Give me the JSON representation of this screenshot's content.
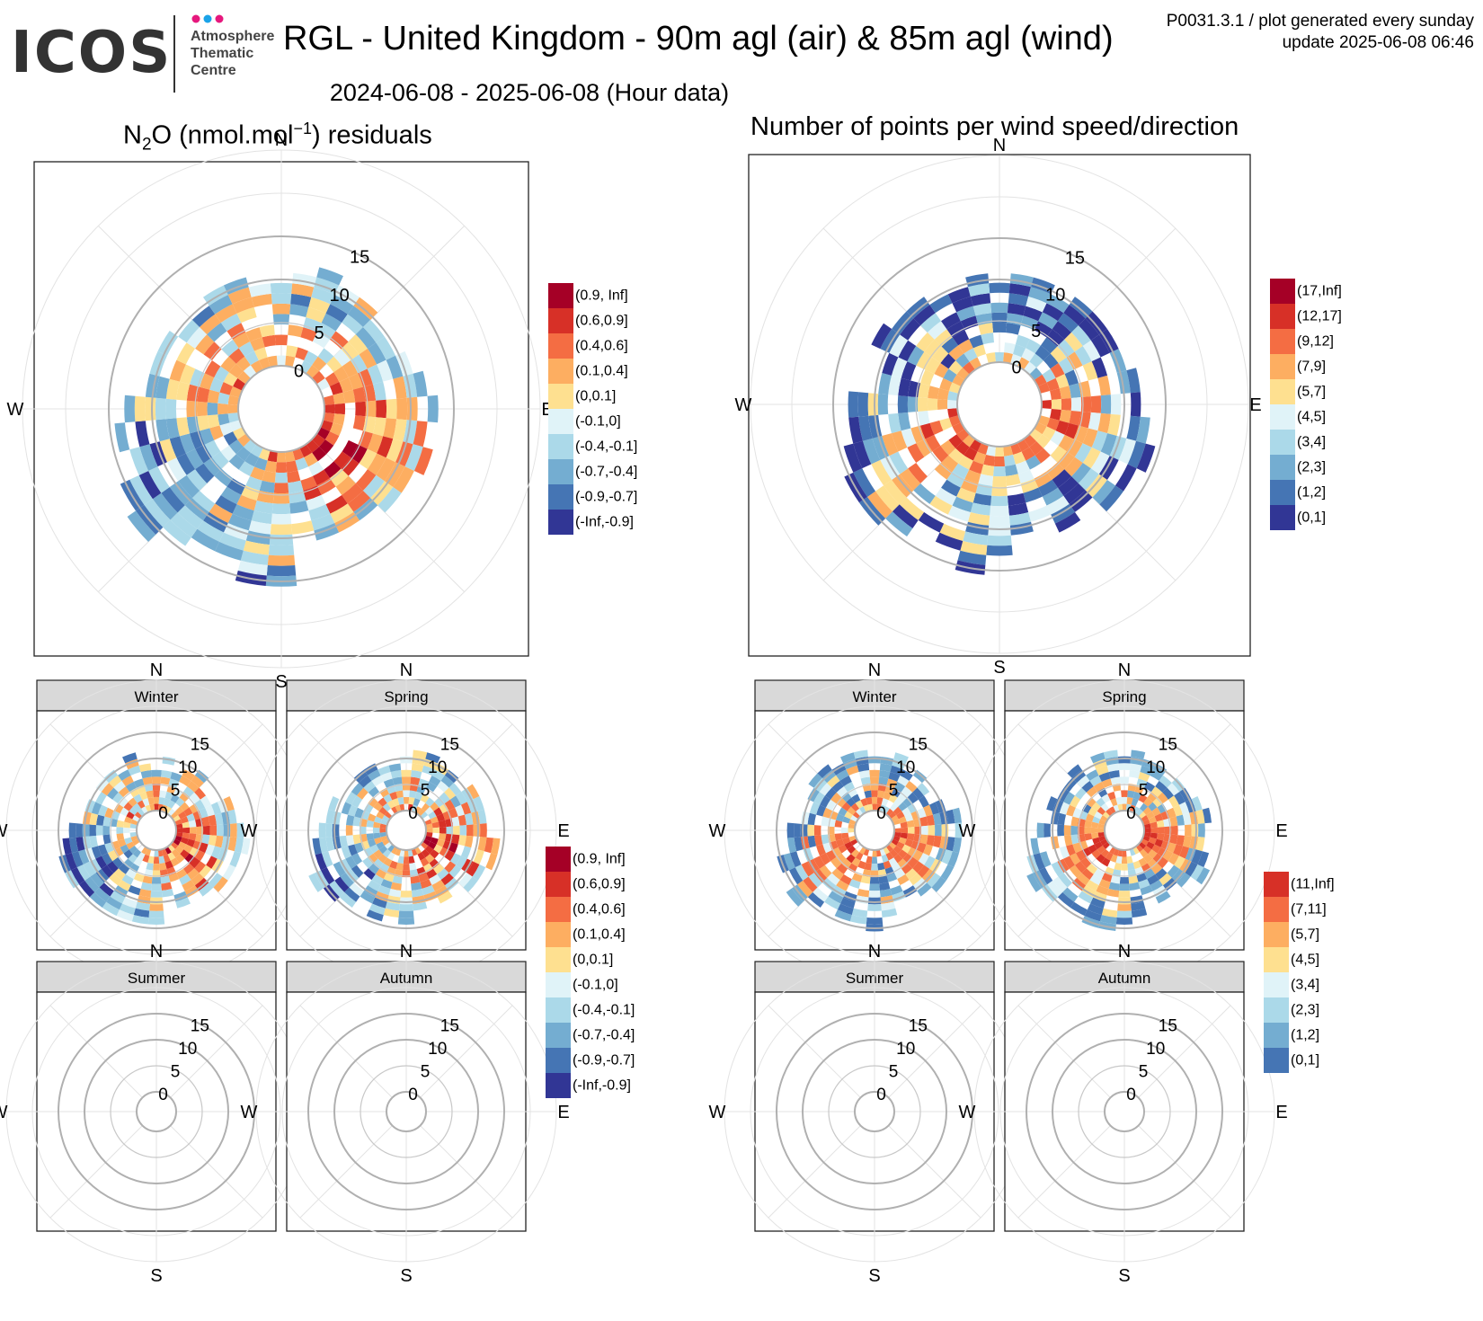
{
  "header": {
    "logo_word": "ICOS",
    "logo_sub": [
      "Atmosphere",
      "Thematic",
      "Centre"
    ],
    "title": "RGL - United Kingdom - 90m agl (air) & 85m agl (wind)",
    "meta_line1": "P0031.3.1 / plot generated every sunday",
    "meta_line2": "update  2025-06-08 06:46",
    "subtitle": "2024-06-08 - 2025-06-08 (Hour data)",
    "brand_dot_colors": [
      "#e6187d",
      "#1aa3e8",
      "#e6187d"
    ]
  },
  "panels": {
    "left_title_species": "N",
    "left_title_sub": "2",
    "left_title_mid": "O (nmol.mol",
    "left_title_sup": "−1",
    "left_title_end": ") residuals",
    "right_title": "Number of points per wind speed/direction"
  },
  "chart_data": [
    {
      "id": "n2o-residuals-annual",
      "type": "polar-heatmap",
      "title": "N2O (nmol.mol-1) residuals",
      "direction_labels": [
        "N",
        "E",
        "S",
        "W"
      ],
      "radial_tick_labels": [
        "0",
        "5",
        "10",
        "15"
      ],
      "radial_range": [
        0,
        15
      ],
      "variable": "residual",
      "legend": {
        "placement": "right",
        "classes": [
          "(0.9, Inf]",
          "(0.6,0.9]",
          "(0.4,0.6]",
          "(0.1,0.4]",
          "(0,0.1]",
          "(-0.1,0]",
          "(-0.4,-0.1]",
          "(-0.7,-0.4]",
          "(-0.9,-0.7]",
          "(-Inf,-0.9]"
        ],
        "colors": [
          "#a50026",
          "#d73027",
          "#f46d43",
          "#fdae61",
          "#fee090",
          "#e0f3f8",
          "#abd9e9",
          "#74add1",
          "#4575b4",
          "#313695"
        ]
      }
    },
    {
      "id": "points-per-wind-annual",
      "type": "polar-heatmap",
      "title": "Number of points per wind speed/direction",
      "direction_labels": [
        "N",
        "E",
        "S",
        "W"
      ],
      "radial_tick_labels": [
        "0",
        "5",
        "10",
        "15"
      ],
      "radial_range": [
        0,
        15
      ],
      "variable": "count",
      "legend": {
        "placement": "right",
        "classes": [
          "(17,Inf]",
          "(12,17]",
          "(9,12]",
          "(7,9]",
          "(5,7]",
          "(4,5]",
          "(3,4]",
          "(2,3]",
          "(1,2]",
          "(0,1]"
        ],
        "colors": [
          "#a50026",
          "#d73027",
          "#f46d43",
          "#fdae61",
          "#fee090",
          "#e0f3f8",
          "#abd9e9",
          "#74add1",
          "#4575b4",
          "#313695"
        ]
      }
    },
    {
      "id": "n2o-residuals-seasonal",
      "type": "polar-heatmap-facets",
      "facets": [
        "Winter",
        "Spring",
        "Summer",
        "Autumn"
      ],
      "facets_with_data": [
        "Winter",
        "Spring"
      ],
      "direction_labels": [
        "N",
        "E",
        "S",
        "W"
      ],
      "radial_tick_labels": [
        "0",
        "5",
        "10",
        "15"
      ],
      "radial_range": [
        0,
        15
      ],
      "legend": {
        "placement": "right",
        "classes": [
          "(0.9, Inf]",
          "(0.6,0.9]",
          "(0.4,0.6]",
          "(0.1,0.4]",
          "(0,0.1]",
          "(-0.1,0]",
          "(-0.4,-0.1]",
          "(-0.7,-0.4]",
          "(-0.9,-0.7]",
          "(-Inf,-0.9]"
        ],
        "colors": [
          "#a50026",
          "#d73027",
          "#f46d43",
          "#fdae61",
          "#fee090",
          "#e0f3f8",
          "#abd9e9",
          "#74add1",
          "#4575b4",
          "#313695"
        ]
      }
    },
    {
      "id": "points-per-wind-seasonal",
      "type": "polar-heatmap-facets",
      "facets": [
        "Winter",
        "Spring",
        "Summer",
        "Autumn"
      ],
      "facets_with_data": [
        "Winter",
        "Spring"
      ],
      "direction_labels": [
        "N",
        "E",
        "S",
        "W"
      ],
      "radial_tick_labels": [
        "0",
        "5",
        "10",
        "15"
      ],
      "radial_range": [
        0,
        15
      ],
      "legend": {
        "placement": "right",
        "classes": [
          "(11,Inf]",
          "(7,11]",
          "(5,7]",
          "(4,5]",
          "(3,4]",
          "(2,3]",
          "(1,2]",
          "(0,1]"
        ],
        "colors": [
          "#d73027",
          "#f46d43",
          "#fdae61",
          "#fee090",
          "#e0f3f8",
          "#abd9e9",
          "#74add1",
          "#4575b4"
        ]
      }
    }
  ]
}
